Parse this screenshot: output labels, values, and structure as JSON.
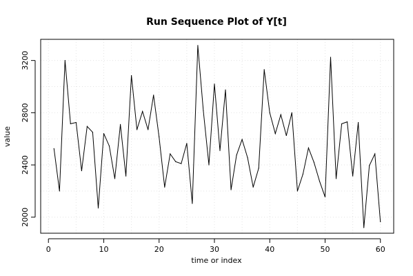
{
  "chart_data": {
    "type": "line",
    "title": "Run Sequence Plot of Y[t]",
    "xlabel": "time or index",
    "ylabel": "value",
    "xlim": [
      -1.4,
      62.4
    ],
    "ylim": [
      1877,
      3362
    ],
    "xticks": [
      0,
      10,
      20,
      30,
      40,
      50,
      60
    ],
    "yticks": [
      2000,
      2400,
      2800,
      3200
    ],
    "grid": true,
    "x": [
      1,
      2,
      3,
      4,
      5,
      6,
      7,
      8,
      9,
      10,
      11,
      12,
      13,
      14,
      15,
      16,
      17,
      18,
      19,
      20,
      21,
      22,
      23,
      24,
      25,
      26,
      27,
      28,
      29,
      30,
      31,
      32,
      33,
      34,
      35,
      36,
      37,
      38,
      39,
      40,
      41,
      42,
      43,
      44,
      45,
      46,
      47,
      48,
      49,
      50,
      51,
      52,
      53,
      54,
      55,
      56,
      57,
      58,
      59,
      60
    ],
    "values": [
      2525,
      2200,
      3200,
      2715,
      2725,
      2355,
      2695,
      2650,
      2070,
      2640,
      2545,
      2295,
      2710,
      2315,
      3085,
      2670,
      2810,
      2670,
      2935,
      2615,
      2230,
      2485,
      2425,
      2410,
      2565,
      2105,
      3315,
      2815,
      2400,
      3020,
      2510,
      2975,
      2210,
      2475,
      2595,
      2455,
      2230,
      2375,
      3130,
      2800,
      2640,
      2785,
      2625,
      2800,
      2200,
      2330,
      2530,
      2420,
      2275,
      2155,
      3225,
      2295,
      2715,
      2730,
      2315,
      2725,
      1920,
      2395,
      2485,
      1965
    ]
  }
}
